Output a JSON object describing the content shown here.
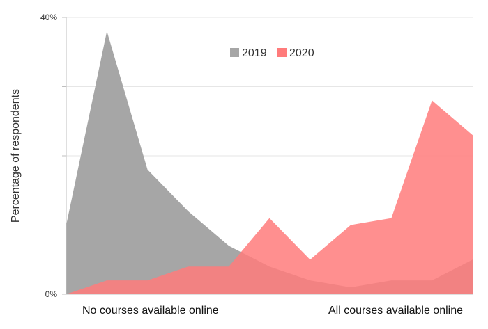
{
  "chart_data": {
    "type": "area",
    "x": [
      1,
      2,
      3,
      4,
      5,
      6,
      7,
      8,
      9,
      10,
      11
    ],
    "series": [
      {
        "name": "2019",
        "color": "#a6a6a6",
        "values": [
          10,
          38,
          18,
          12,
          7,
          4,
          2,
          1,
          2,
          2,
          5
        ]
      },
      {
        "name": "2020",
        "color": "#ff7b7b",
        "values": [
          0,
          2,
          2,
          4,
          4,
          11,
          5,
          10,
          11,
          28,
          23
        ]
      }
    ],
    "ylim": [
      0,
      40
    ],
    "yticks_labeled": [
      "0%",
      "40%"
    ],
    "ylabel": "Percentage of respondents",
    "x_end_labels": {
      "left": "No courses available online",
      "right": "All courses available online"
    },
    "grid": true,
    "legend_position": "top-center"
  }
}
